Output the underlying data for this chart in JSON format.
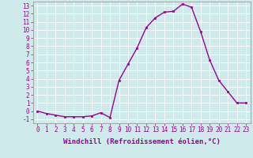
{
  "x": [
    0,
    1,
    2,
    3,
    4,
    5,
    6,
    7,
    8,
    9,
    10,
    11,
    12,
    13,
    14,
    15,
    16,
    17,
    18,
    19,
    20,
    21,
    22,
    23
  ],
  "y": [
    0.0,
    -0.3,
    -0.5,
    -0.7,
    -0.7,
    -0.7,
    -0.6,
    -0.2,
    -0.8,
    3.8,
    5.8,
    7.8,
    10.3,
    11.5,
    12.2,
    12.3,
    13.2,
    12.8,
    9.8,
    6.3,
    3.8,
    2.4,
    1.0,
    1.0
  ],
  "line_color": "#990099",
  "marker": "s",
  "markersize": 2,
  "linewidth": 1.0,
  "xlabel": "Windchill (Refroidissement éolien,°C)",
  "xlabel_fontsize": 6.5,
  "ylabel_ticks": [
    -1,
    0,
    1,
    2,
    3,
    4,
    5,
    6,
    7,
    8,
    9,
    10,
    11,
    12,
    13
  ],
  "xlim": [
    -0.5,
    23.5
  ],
  "ylim": [
    -1.5,
    13.5
  ],
  "bg_color": "#ceeaea",
  "grid_color": "#ffffff",
  "tick_color": "#990099",
  "tick_fontsize": 5.5
}
